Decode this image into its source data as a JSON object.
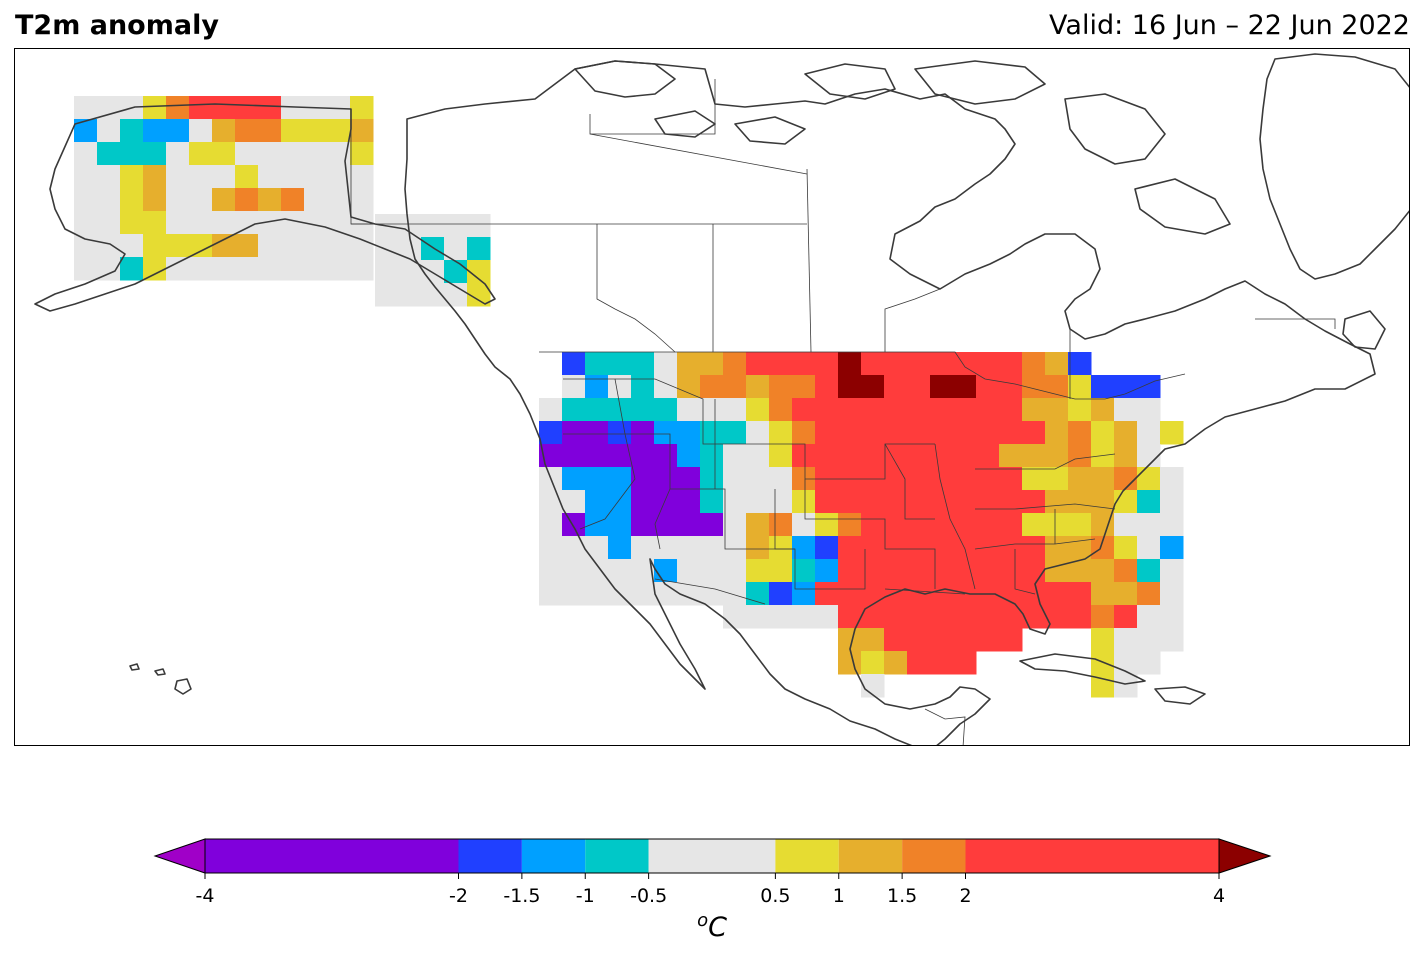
{
  "title": "T2m anomaly",
  "valid": "Valid: 16 Jun – 22 Jun 2022",
  "colorbar": {
    "unit_base": "C",
    "unit_sup": "o",
    "extend": "both",
    "ticks": [
      "-4",
      "-2",
      "-1.5",
      "-1",
      "-0.5",
      "0.5",
      "1",
      "1.5",
      "2",
      "4"
    ],
    "bins": [
      {
        "from": -4,
        "to": -2,
        "color": "#8000dc"
      },
      {
        "from": -2,
        "to": -1.5,
        "color": "#2040ff"
      },
      {
        "from": -1.5,
        "to": -1,
        "color": "#00a0ff"
      },
      {
        "from": -1,
        "to": -0.5,
        "color": "#00c8c8"
      },
      {
        "from": -0.5,
        "to": 0.5,
        "color": "#e6e6e6"
      },
      {
        "from": 0.5,
        "to": 1,
        "color": "#e6dc32"
      },
      {
        "from": 1,
        "to": 1.5,
        "color": "#e6af2d"
      },
      {
        "from": 1.5,
        "to": 2,
        "color": "#f08228"
      },
      {
        "from": 2,
        "to": 4,
        "color": "#ff3c3c"
      }
    ],
    "under_color": "#a000c8",
    "over_color": "#8c0000"
  },
  "map": {
    "region": "North America",
    "colors": {
      "v": "#8000dc",
      "b": "#2040ff",
      "l": "#00a0ff",
      "c": "#00c8c8",
      "g": "#e6e6e6",
      "y": "#e6dc32",
      "o": "#e6af2d",
      "O": "#f08228",
      "r": "#ff3c3c",
      "d": "#8c0000"
    }
  }
}
